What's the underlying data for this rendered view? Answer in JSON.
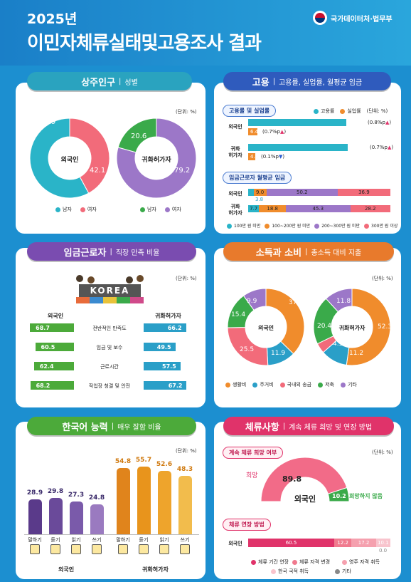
{
  "header": {
    "year": "2025년",
    "title": "이민자체류실태및고용조사 결과",
    "org": "국가데이터처·법무부"
  },
  "units": {
    "percent": "(단위: %)"
  },
  "resident": {
    "title": "상주인구",
    "subtitle": "성별",
    "foreign": {
      "label": "외국인",
      "male": 57.9,
      "female": 42.1,
      "male_text": "57.9",
      "female_text": "42.1"
    },
    "natural": {
      "label": "귀화허가자",
      "male": 20.6,
      "female": 79.2,
      "male_text": "20.6",
      "female_text": "79.2"
    },
    "legend_male": "남자",
    "legend_female": "여자",
    "colors": {
      "male": "#2ab4c8",
      "female": "#f26b7a",
      "male2": "#3aaa4a",
      "female2": "#9c77c8"
    }
  },
  "employment": {
    "title": "고용",
    "subtitle": "고용률, 실업률, 월평균 임금",
    "sec1": "고용률 및 실업률",
    "legend_emp": "고용률",
    "legend_unemp": "실업률",
    "rows": [
      {
        "label": "외국인",
        "emp": 65.5,
        "emp_text": "65.5",
        "emp_change": "(0.8%p",
        "unemp": 6.4,
        "unemp_text": "6.4",
        "unemp_change": "(0.7%p"
      },
      {
        "label1": "귀화",
        "label2": "허가자",
        "emp": 66.6,
        "emp_text": "66.6",
        "emp_change": "(0.7%p",
        "unemp": 4.7,
        "unemp_text": "4.7",
        "unemp_change": "(0.1%p"
      }
    ],
    "sec2": "임금근로자 월평균 임금",
    "wage_rows": [
      {
        "label": "외국인",
        "values": [
          3.8,
          9.0,
          50.2,
          36.9
        ],
        "texts": [
          "3.8",
          "9.0",
          "50.2",
          "36.9"
        ]
      },
      {
        "label1": "귀화",
        "label2": "허가자",
        "values": [
          7.7,
          18.8,
          45.3,
          28.2
        ],
        "texts": [
          "7.7",
          "18.8",
          "45.3",
          "28.2"
        ]
      }
    ],
    "wage_legend": [
      "100만 원 미만",
      "100~200만 원 미만",
      "200~300만 원 미만",
      "300만 원 이상"
    ],
    "wage_colors": [
      "#2ab4c8",
      "#f08c2c",
      "#9c77c8",
      "#f26b7a"
    ]
  },
  "satisfaction": {
    "title": "임금근로자",
    "subtitle": "직장 만족 비율",
    "korea_sign": "KOREA",
    "left_head": "외국인",
    "right_head": "귀화허가자",
    "items": [
      {
        "label": "전반적인 만족도",
        "foreign": 68.7,
        "foreign_text": "68.7",
        "natural": 66.2,
        "natural_text": "66.2"
      },
      {
        "label": "임금 및 보수",
        "foreign": 60.5,
        "foreign_text": "60.5",
        "natural": 49.5,
        "natural_text": "49.5"
      },
      {
        "label": "근로시간",
        "foreign": 62.4,
        "foreign_text": "62.4",
        "natural": 57.5,
        "natural_text": "57.5"
      },
      {
        "label": "작업장 청결 및 안전",
        "foreign": 68.2,
        "foreign_text": "68.2",
        "natural": 67.2,
        "natural_text": "67.2"
      }
    ]
  },
  "income": {
    "title": "소득과 소비",
    "subtitle": "총소득 대비 지출",
    "foreign": {
      "label": "외국인",
      "values": [
        37.3,
        11.9,
        25.5,
        15.4,
        9.9
      ],
      "texts": [
        "37.3",
        "11.9",
        "25.5",
        "15.4",
        "9.9"
      ]
    },
    "natural": {
      "label": "귀화허가자",
      "values": [
        52.3,
        11.2,
        4.3,
        20.4,
        11.8
      ],
      "texts": [
        "52.3",
        "11.2",
        "4.3",
        "20.4",
        "11.8"
      ]
    },
    "legend": [
      "생활비",
      "주거비",
      "국내외 송금",
      "저축",
      "기타"
    ],
    "colors": [
      "#f08c2c",
      "#2a9fc8",
      "#f26b7a",
      "#3aaa4a",
      "#9c77c8"
    ]
  },
  "korean": {
    "title": "한국어 능력",
    "subtitle": "매우 잘함 비율",
    "foreign": {
      "label": "외국인",
      "values": [
        28.9,
        29.8,
        27.3,
        24.8
      ],
      "texts": [
        "28.9",
        "29.8",
        "27.3",
        "24.8"
      ]
    },
    "natural": {
      "label": "귀화허가자",
      "values": [
        54.8,
        55.7,
        52.6,
        48.3
      ],
      "texts": [
        "54.8",
        "55.7",
        "52.6",
        "48.3"
      ]
    },
    "skills": [
      "말하기",
      "듣기",
      "읽기",
      "쓰기"
    ]
  },
  "stay": {
    "title": "체류사항",
    "subtitle": "계속 체류 희망 및 연장 방법",
    "sec1": "계속 체류 희망 여부",
    "hope_label": "희망",
    "hope": 89.8,
    "hope_text": "89.8",
    "nohope_label": "희망하지 않음",
    "nohope": 10.2,
    "nohope_text": "10.2",
    "center": "외국인",
    "sec2": "체류 연장 방법",
    "row_label": "외국인",
    "ext_values": [
      60.5,
      12.2,
      17.2,
      10.1,
      0.0
    ],
    "ext_texts": [
      "60.5",
      "12.2",
      "17.2",
      "10.1",
      "0.0"
    ],
    "ext_legend": [
      "체류 기간 연장",
      "체류 자격 변경",
      "영주 자격 취득",
      "한국 국적 취득",
      "기타"
    ],
    "ext_colors": [
      "#e0336a",
      "#f07a8e",
      "#f5a0ae",
      "#f8c4cd",
      "#888888"
    ]
  }
}
